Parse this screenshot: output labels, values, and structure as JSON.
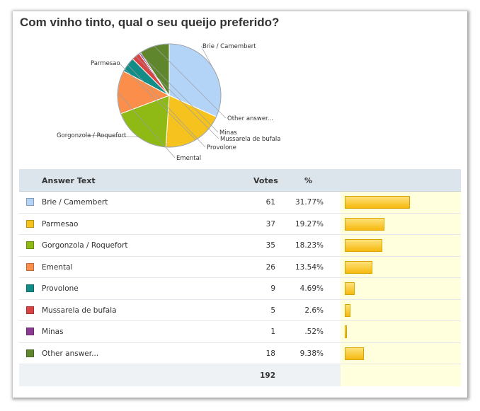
{
  "poll": {
    "title": "Com vinho tinto, qual o seu queijo preferido?",
    "columns": {
      "answer": "Answer Text",
      "votes": "Votes",
      "percent": "%"
    },
    "total_votes": "192"
  },
  "chart_data": {
    "type": "pie",
    "title": "Com vinho tinto, qual o seu queijo preferido?",
    "categories": [
      "Brie / Camembert",
      "Parmesao",
      "Gorgonzola / Roquefort",
      "Emental",
      "Provolone",
      "Mussarela de bufala",
      "Minas",
      "Other answer..."
    ],
    "values": [
      61,
      37,
      35,
      26,
      9,
      5,
      1,
      18
    ],
    "percents": [
      "31.77%",
      "19.27%",
      "18.23%",
      "13.54%",
      "4.69%",
      "2.6%",
      ".52%",
      "9.38%"
    ],
    "percent_values": [
      31.77,
      19.27,
      18.23,
      13.54,
      4.69,
      2.6,
      0.52,
      9.38
    ],
    "colors": [
      "#b3d4f7",
      "#f6c21d",
      "#8fba16",
      "#fb8e4a",
      "#118c86",
      "#d84444",
      "#8c3a91",
      "#5f862d"
    ],
    "legend": "right-side labels"
  }
}
